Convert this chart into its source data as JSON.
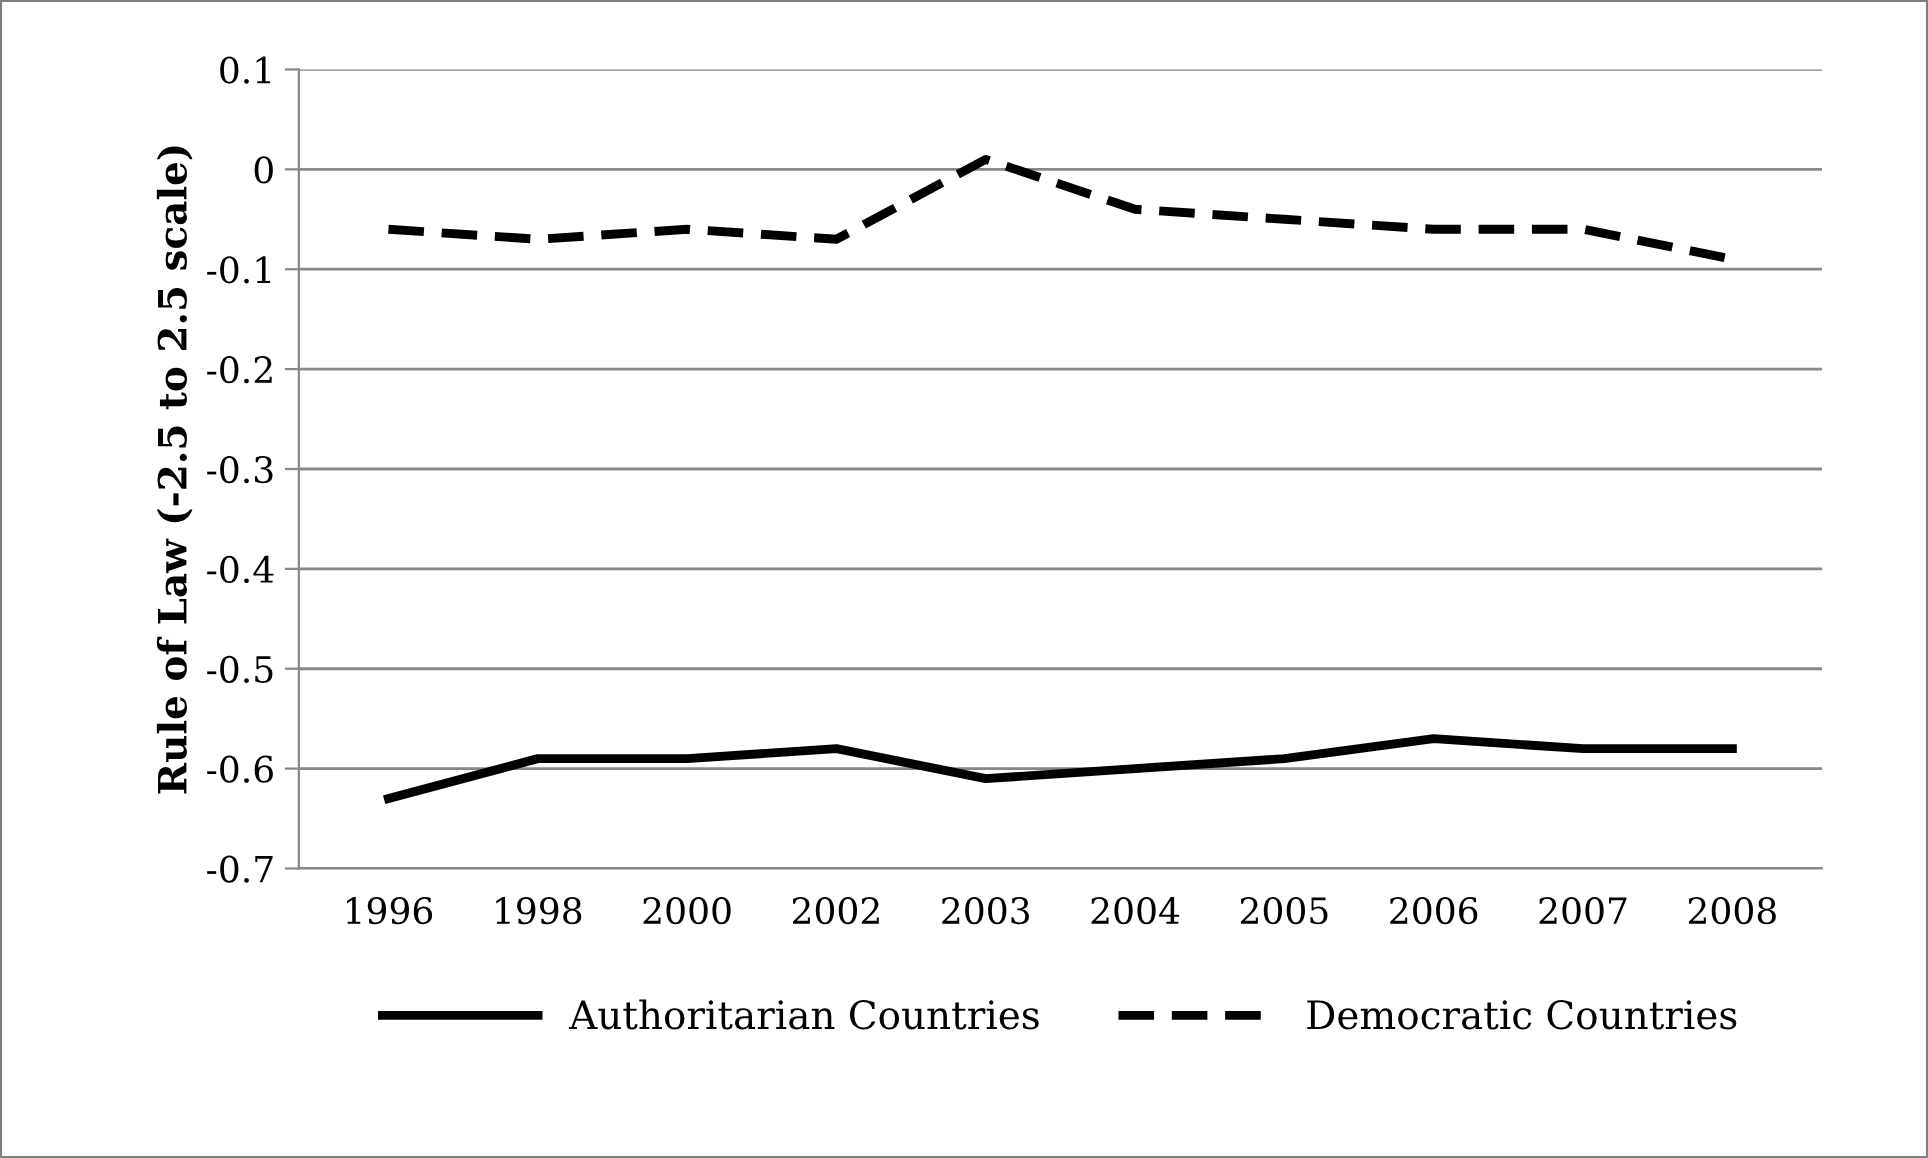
{
  "chart_data": {
    "type": "line",
    "ylabel": "Rule of Law (-2.5 to 2.5 scale)",
    "categories": [
      "1996",
      "1998",
      "2000",
      "2002",
      "2003",
      "2004",
      "2005",
      "2006",
      "2007",
      "2008"
    ],
    "series": [
      {
        "name": "Authoritarian Countries",
        "color": "#000000",
        "line_style": "solid",
        "values": [
          -0.63,
          -0.59,
          -0.59,
          -0.58,
          -0.61,
          -0.6,
          -0.59,
          -0.57,
          -0.58,
          -0.58
        ]
      },
      {
        "name": "Democratic Countries",
        "color": "#000000",
        "line_style": "dashed",
        "values": [
          -0.06,
          -0.07,
          -0.06,
          -0.07,
          0.01,
          -0.04,
          -0.05,
          -0.06,
          -0.06,
          -0.09
        ]
      }
    ],
    "ylim": [
      -0.7,
      0.1
    ],
    "yticks": [
      0.1,
      0,
      -0.1,
      -0.2,
      -0.3,
      -0.4,
      -0.5,
      -0.6,
      -0.7
    ],
    "grid": "y",
    "legend": "bottom",
    "marker": "none"
  }
}
